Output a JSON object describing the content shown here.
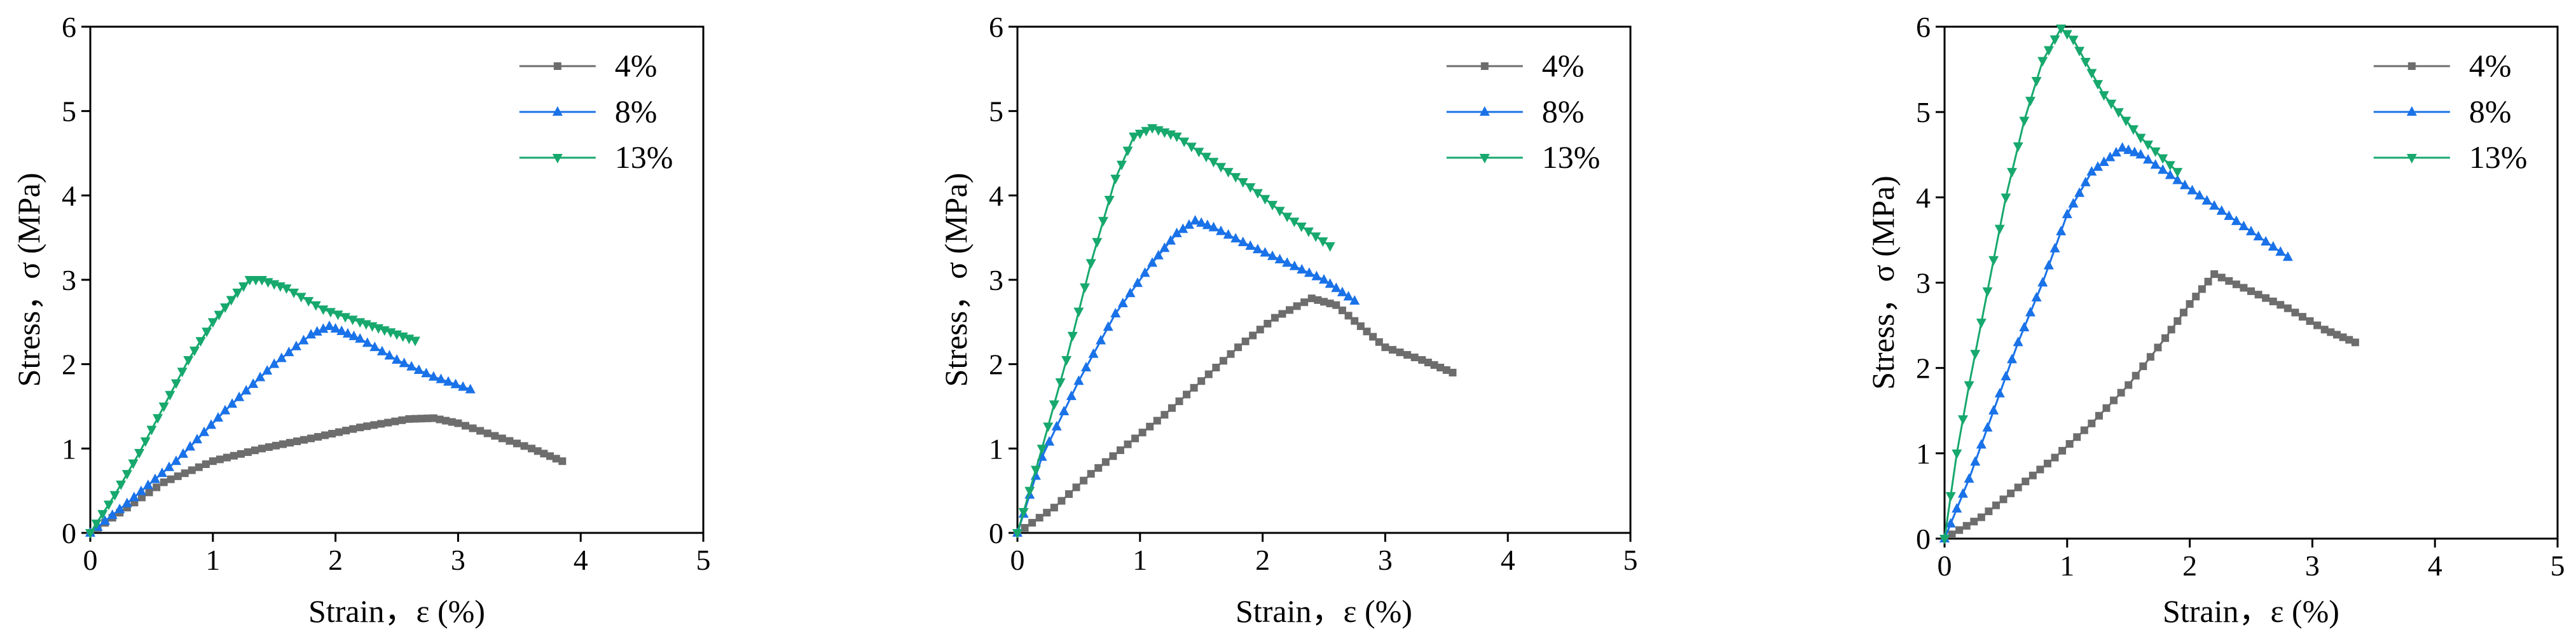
{
  "page": {
    "background": "#ffffff"
  },
  "colors": {
    "s4": "#6d6d6d",
    "s8": "#1a72e8",
    "s13": "#17a86d",
    "axis": "#000000"
  },
  "chart_data": [
    {
      "type": "line",
      "xlabel": "Strain，ε (%)",
      "ylabel": "Stress，σ (MPa)",
      "xlim": [
        0,
        5
      ],
      "ylim": [
        0,
        6
      ],
      "xticks": [
        0,
        1,
        2,
        3,
        4,
        5
      ],
      "yticks": [
        0,
        1,
        2,
        3,
        4,
        5,
        6
      ],
      "legend_position": "top-right",
      "series": [
        {
          "name": "4%",
          "marker": "square",
          "x": [
            0,
            0.3,
            0.6,
            1.0,
            1.4,
            1.8,
            2.2,
            2.6,
            2.8,
            3.0,
            3.3,
            3.6,
            3.85
          ],
          "y": [
            0,
            0.3,
            0.6,
            0.85,
            1.0,
            1.12,
            1.25,
            1.35,
            1.36,
            1.3,
            1.15,
            1.0,
            0.85
          ]
        },
        {
          "name": "8%",
          "marker": "triangle-up",
          "x": [
            0,
            0.3,
            0.7,
            1.1,
            1.5,
            1.8,
            1.95,
            2.2,
            2.5,
            2.8,
            3.1
          ],
          "y": [
            0,
            0.35,
            0.85,
            1.45,
            2.0,
            2.35,
            2.45,
            2.3,
            2.05,
            1.85,
            1.7
          ]
        },
        {
          "name": "13%",
          "marker": "triangle-down",
          "x": [
            0,
            0.2,
            0.4,
            0.6,
            0.8,
            1.0,
            1.2,
            1.3,
            1.4,
            1.6,
            1.9,
            2.2,
            2.45,
            2.65
          ],
          "y": [
            0,
            0.45,
            0.95,
            1.5,
            2.05,
            2.5,
            2.85,
            3.0,
            3.0,
            2.9,
            2.65,
            2.5,
            2.38,
            2.28
          ]
        }
      ]
    },
    {
      "type": "line",
      "xlabel": "Strain，ε (%)",
      "ylabel": "Stress，σ (MPa)",
      "xlim": [
        0,
        5
      ],
      "ylim": [
        0,
        6
      ],
      "xticks": [
        0,
        1,
        2,
        3,
        4,
        5
      ],
      "yticks": [
        0,
        1,
        2,
        3,
        4,
        5,
        6
      ],
      "legend_position": "top-right",
      "series": [
        {
          "name": "4%",
          "marker": "square",
          "x": [
            0,
            0.3,
            0.6,
            0.9,
            1.2,
            1.5,
            1.8,
            2.1,
            2.4,
            2.6,
            2.8,
            3.0,
            3.3,
            3.55
          ],
          "y": [
            0,
            0.3,
            0.7,
            1.05,
            1.4,
            1.8,
            2.2,
            2.55,
            2.78,
            2.7,
            2.45,
            2.2,
            2.05,
            1.9
          ]
        },
        {
          "name": "8%",
          "marker": "triangle-up",
          "x": [
            0,
            0.2,
            0.5,
            0.8,
            1.1,
            1.3,
            1.45,
            1.6,
            1.9,
            2.2,
            2.5,
            2.75
          ],
          "y": [
            0,
            0.9,
            1.8,
            2.6,
            3.2,
            3.55,
            3.7,
            3.62,
            3.4,
            3.2,
            3.0,
            2.75
          ]
        },
        {
          "name": "13%",
          "marker": "triangle-down",
          "x": [
            0,
            0.2,
            0.4,
            0.6,
            0.8,
            0.95,
            1.1,
            1.3,
            1.6,
            1.9,
            2.2,
            2.55
          ],
          "y": [
            0,
            1.0,
            2.05,
            3.2,
            4.2,
            4.7,
            4.8,
            4.7,
            4.4,
            4.1,
            3.75,
            3.4
          ]
        }
      ]
    },
    {
      "type": "line",
      "xlabel": "Strain，ε (%)",
      "ylabel": "Stress，σ (MPa)",
      "xlim": [
        0,
        5
      ],
      "ylim": [
        0,
        6
      ],
      "xticks": [
        0,
        1,
        2,
        3,
        4,
        5
      ],
      "yticks": [
        0,
        1,
        2,
        3,
        4,
        5,
        6
      ],
      "legend_position": "top-right",
      "series": [
        {
          "name": "4%",
          "marker": "square",
          "x": [
            0,
            0.3,
            0.6,
            0.9,
            1.2,
            1.5,
            1.8,
            2.0,
            2.2,
            2.5,
            2.8,
            3.1,
            3.35
          ],
          "y": [
            0,
            0.25,
            0.6,
            0.95,
            1.35,
            1.8,
            2.35,
            2.75,
            3.1,
            2.9,
            2.7,
            2.45,
            2.3
          ]
        },
        {
          "name": "8%",
          "marker": "triangle-up",
          "x": [
            0,
            0.2,
            0.4,
            0.6,
            0.8,
            1.0,
            1.2,
            1.45,
            1.6,
            1.9,
            2.2,
            2.5,
            2.8
          ],
          "y": [
            0,
            0.7,
            1.5,
            2.3,
            3.0,
            3.8,
            4.3,
            4.58,
            4.5,
            4.2,
            3.9,
            3.6,
            3.3
          ]
        },
        {
          "name": "13%",
          "marker": "triangle-down",
          "x": [
            0,
            0.1,
            0.2,
            0.35,
            0.5,
            0.65,
            0.8,
            0.95,
            1.05,
            1.3,
            1.6,
            1.9
          ],
          "y": [
            0,
            1.0,
            1.8,
            2.9,
            4.0,
            4.9,
            5.6,
            5.98,
            5.85,
            5.2,
            4.7,
            4.3
          ]
        }
      ]
    }
  ]
}
